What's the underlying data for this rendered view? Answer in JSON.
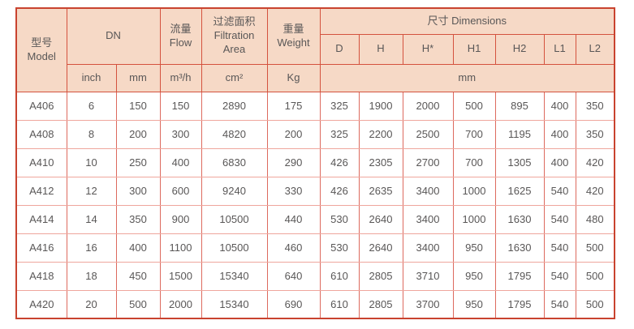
{
  "table": {
    "header": {
      "model": "型号\nModel",
      "dn": "DN",
      "flow": "流量\nFlow",
      "area": "过滤面积\nFiltration\nArea",
      "weight": "重量\nWeight",
      "dimensions": "尺寸 Dimensions",
      "dim_cols": [
        "D",
        "H",
        "H*",
        "H1",
        "H2",
        "L1",
        "L2"
      ],
      "units": {
        "inch": "inch",
        "mm": "mm",
        "flow": "m³/h",
        "area": "cm²",
        "weight": "Kg",
        "dims": "mm"
      }
    },
    "column_keys": [
      "model",
      "dn-inch",
      "dn-mm",
      "flow",
      "filtration-area",
      "weight",
      "dim-d",
      "dim-h",
      "dim-hstar",
      "dim-h1",
      "dim-h2",
      "dim-l1",
      "dim-l2"
    ],
    "rows": [
      [
        "A406",
        "6",
        "150",
        "150",
        "2890",
        "175",
        "325",
        "1900",
        "2000",
        "500",
        "895",
        "400",
        "350"
      ],
      [
        "A408",
        "8",
        "200",
        "300",
        "4820",
        "200",
        "325",
        "2200",
        "2500",
        "700",
        "1195",
        "400",
        "350"
      ],
      [
        "A410",
        "10",
        "250",
        "400",
        "6830",
        "290",
        "426",
        "2305",
        "2700",
        "700",
        "1305",
        "400",
        "420"
      ],
      [
        "A412",
        "12",
        "300",
        "600",
        "9240",
        "330",
        "426",
        "2635",
        "3400",
        "1000",
        "1625",
        "540",
        "420"
      ],
      [
        "A414",
        "14",
        "350",
        "900",
        "10500",
        "440",
        "530",
        "2640",
        "3400",
        "1000",
        "1630",
        "540",
        "480"
      ],
      [
        "A416",
        "16",
        "400",
        "1100",
        "10500",
        "460",
        "530",
        "2640",
        "3400",
        "950",
        "1630",
        "540",
        "500"
      ],
      [
        "A418",
        "18",
        "450",
        "1500",
        "15340",
        "640",
        "610",
        "2805",
        "3710",
        "950",
        "1795",
        "540",
        "500"
      ],
      [
        "A420",
        "20",
        "500",
        "2000",
        "15340",
        "690",
        "610",
        "2805",
        "3700",
        "950",
        "1795",
        "540",
        "500"
      ]
    ],
    "colors": {
      "header_bg": "#f6d9c6",
      "outer_border": "#c9432f",
      "header_border": "#d4523e",
      "grid_vertical": "#dd6a5e",
      "grid_horizontal": "#efa69d",
      "text": "#595757"
    }
  }
}
